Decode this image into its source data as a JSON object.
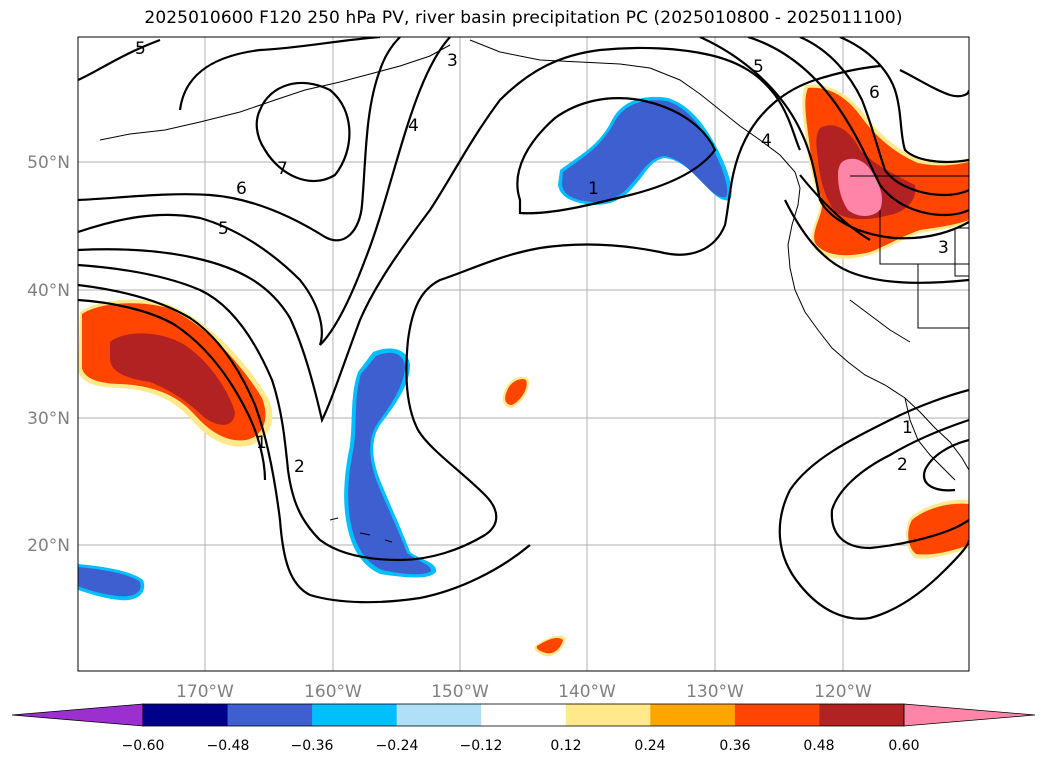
{
  "title": "2025010600 F120 250 hPa PV, river basin precipitation PC (2025010800 - 2025011100)",
  "map": {
    "lat_ticks": [
      "50°N",
      "40°N",
      "30°N",
      "20°N"
    ],
    "lon_ticks": [
      "170°W",
      "160°W",
      "150°W",
      "140°W",
      "130°W",
      "120°W"
    ],
    "contour_labels": [
      "5",
      "7",
      "6",
      "5",
      "4",
      "3",
      "5",
      "4",
      "6",
      "1",
      "3",
      "1",
      "2",
      "1",
      "2"
    ]
  },
  "colorbar": {
    "colors": [
      "#9b30d1",
      "#00008b",
      "#3d5fcf",
      "#00bfff",
      "#afe0f7",
      "#ffffff",
      "#ffe98a",
      "#ffa500",
      "#ff4500",
      "#b22222",
      "#ff85a8"
    ],
    "tick_labels": [
      "−0.60",
      "−0.48",
      "−0.36",
      "−0.24",
      "−0.12",
      "0.12",
      "0.24",
      "0.36",
      "0.48",
      "0.60"
    ]
  }
}
